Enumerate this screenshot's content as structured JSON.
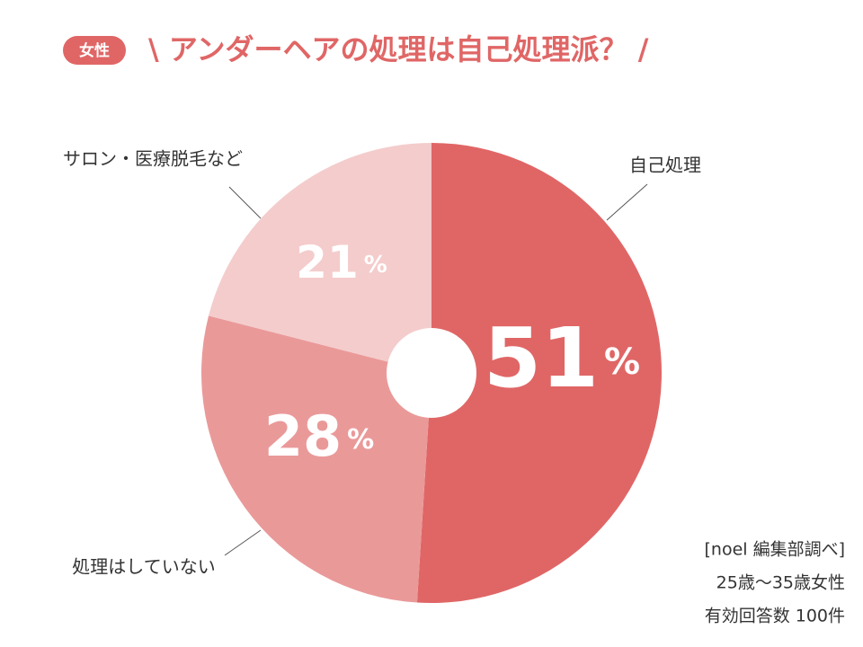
{
  "chart_data": {
    "type": "pie",
    "badge": "女性",
    "title": "\\ アンダーヘアの処理は自己処理派？ /",
    "categories": [
      "自己処理",
      "処理はしていない",
      "サロン・医療脱毛など"
    ],
    "values": [
      51,
      28,
      21
    ],
    "value_labels": [
      "51%",
      "28%",
      "21%"
    ],
    "colors": [
      "#e06666",
      "#ea9999",
      "#f4cccc"
    ],
    "notes": [
      "[noel 編集部調べ]",
      "25歳〜35歳女性",
      "有効回答数 100件"
    ]
  }
}
